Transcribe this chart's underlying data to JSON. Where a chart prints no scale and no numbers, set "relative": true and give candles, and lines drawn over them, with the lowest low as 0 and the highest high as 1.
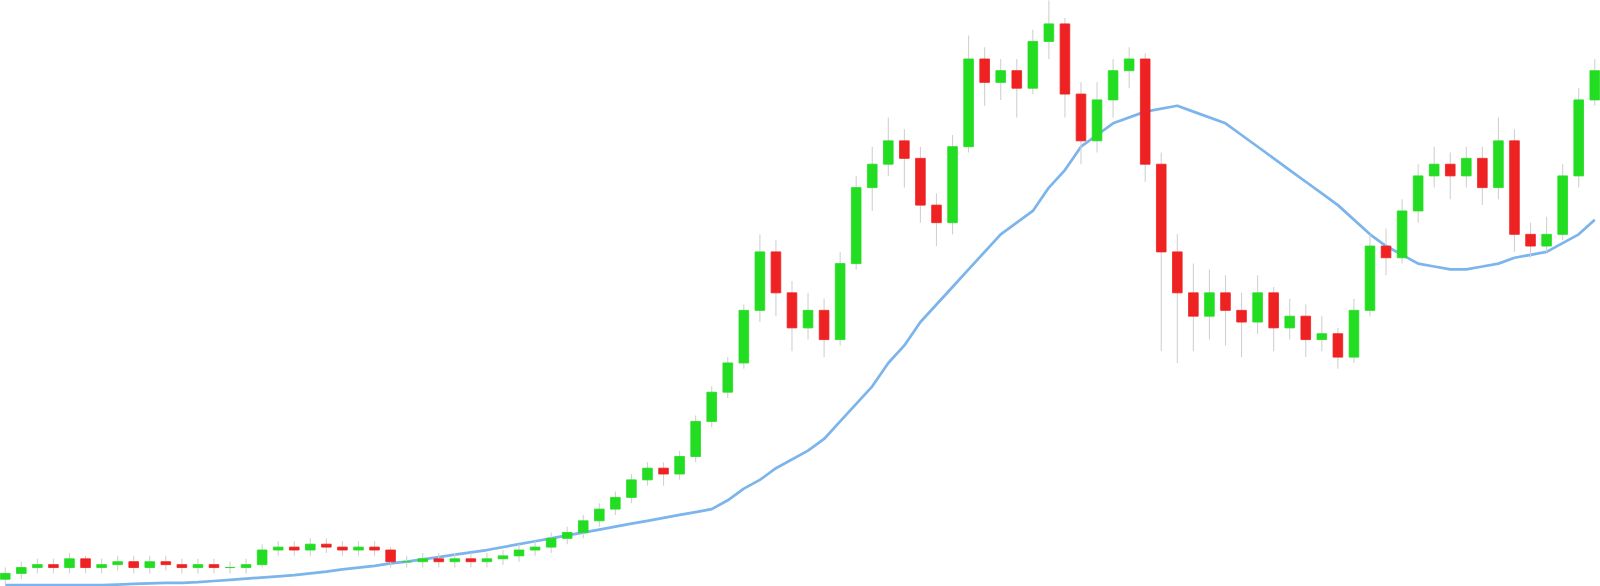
{
  "chart_data": {
    "type": "candlestick",
    "relative": true,
    "categories": [
      null,
      null,
      null,
      null,
      null,
      null,
      null,
      null,
      null,
      null,
      null,
      null,
      null,
      null,
      null,
      null,
      null,
      null,
      null,
      null,
      null,
      null,
      null,
      null,
      null,
      null,
      null,
      null,
      null,
      null,
      null,
      null,
      null,
      null,
      null,
      null,
      null,
      null,
      null,
      null,
      null,
      null,
      null,
      null,
      null,
      null,
      null,
      null,
      null,
      null,
      null,
      null,
      null,
      null,
      null,
      null,
      null,
      null,
      null,
      null,
      null,
      null,
      null,
      null,
      null,
      null,
      null,
      null,
      null,
      null,
      null,
      null,
      null,
      null,
      null,
      null,
      null,
      null,
      null,
      null,
      null,
      null,
      null,
      null,
      null,
      null,
      null,
      null,
      null,
      null,
      null,
      null,
      null,
      null,
      null,
      null,
      null,
      null,
      null,
      null
    ],
    "ohlc": [
      [
        0.01,
        0.03,
        0,
        0.02
      ],
      [
        0.02,
        0.04,
        0.01,
        0.03
      ],
      [
        0.03,
        0.045,
        0.02,
        0.035
      ],
      [
        0.035,
        0.045,
        0.02,
        0.03
      ],
      [
        0.03,
        0.055,
        0.02,
        0.045
      ],
      [
        0.045,
        0.05,
        0.02,
        0.03
      ],
      [
        0.03,
        0.045,
        0.02,
        0.035
      ],
      [
        0.035,
        0.05,
        0.025,
        0.04
      ],
      [
        0.04,
        0.05,
        0.02,
        0.03
      ],
      [
        0.03,
        0.05,
        0.02,
        0.04
      ],
      [
        0.04,
        0.05,
        0.025,
        0.035
      ],
      [
        0.035,
        0.045,
        0.02,
        0.03
      ],
      [
        0.03,
        0.045,
        0.02,
        0.035
      ],
      [
        0.035,
        0.045,
        0.02,
        0.03
      ],
      [
        0.03,
        0.04,
        0.02,
        0.03
      ],
      [
        0.03,
        0.045,
        0.02,
        0.035
      ],
      [
        0.035,
        0.07,
        0.03,
        0.06
      ],
      [
        0.06,
        0.075,
        0.05,
        0.065
      ],
      [
        0.065,
        0.075,
        0.05,
        0.06
      ],
      [
        0.06,
        0.08,
        0.05,
        0.07
      ],
      [
        0.07,
        0.08,
        0.055,
        0.065
      ],
      [
        0.065,
        0.075,
        0.05,
        0.06
      ],
      [
        0.06,
        0.075,
        0.05,
        0.065
      ],
      [
        0.065,
        0.075,
        0.05,
        0.06
      ],
      [
        0.06,
        0.065,
        0.03,
        0.04
      ],
      [
        0.04,
        0.05,
        0.03,
        0.04
      ],
      [
        0.04,
        0.055,
        0.03,
        0.045
      ],
      [
        0.045,
        0.055,
        0.03,
        0.04
      ],
      [
        0.04,
        0.055,
        0.03,
        0.045
      ],
      [
        0.045,
        0.055,
        0.03,
        0.04
      ],
      [
        0.04,
        0.055,
        0.03,
        0.045
      ],
      [
        0.045,
        0.06,
        0.035,
        0.05
      ],
      [
        0.05,
        0.07,
        0.04,
        0.06
      ],
      [
        0.06,
        0.075,
        0.05,
        0.065
      ],
      [
        0.065,
        0.09,
        0.055,
        0.08
      ],
      [
        0.08,
        0.1,
        0.07,
        0.09
      ],
      [
        0.09,
        0.12,
        0.08,
        0.11
      ],
      [
        0.11,
        0.14,
        0.1,
        0.13
      ],
      [
        0.13,
        0.16,
        0.12,
        0.15
      ],
      [
        0.15,
        0.19,
        0.14,
        0.18
      ],
      [
        0.18,
        0.21,
        0.17,
        0.2
      ],
      [
        0.2,
        0.21,
        0.17,
        0.19
      ],
      [
        0.19,
        0.23,
        0.18,
        0.22
      ],
      [
        0.22,
        0.29,
        0.21,
        0.28
      ],
      [
        0.28,
        0.34,
        0.27,
        0.33
      ],
      [
        0.33,
        0.39,
        0.32,
        0.38
      ],
      [
        0.38,
        0.48,
        0.37,
        0.47
      ],
      [
        0.47,
        0.6,
        0.45,
        0.57
      ],
      [
        0.57,
        0.59,
        0.46,
        0.5
      ],
      [
        0.5,
        0.52,
        0.4,
        0.44
      ],
      [
        0.44,
        0.5,
        0.42,
        0.47
      ],
      [
        0.47,
        0.49,
        0.39,
        0.42
      ],
      [
        0.42,
        0.57,
        0.41,
        0.55
      ],
      [
        0.55,
        0.7,
        0.54,
        0.68
      ],
      [
        0.68,
        0.75,
        0.64,
        0.72
      ],
      [
        0.72,
        0.8,
        0.7,
        0.76
      ],
      [
        0.76,
        0.78,
        0.68,
        0.73
      ],
      [
        0.73,
        0.75,
        0.62,
        0.65
      ],
      [
        0.65,
        0.67,
        0.58,
        0.62
      ],
      [
        0.62,
        0.77,
        0.6,
        0.75
      ],
      [
        0.75,
        0.94,
        0.74,
        0.9
      ],
      [
        0.9,
        0.92,
        0.82,
        0.86
      ],
      [
        0.86,
        0.9,
        0.83,
        0.88
      ],
      [
        0.88,
        0.9,
        0.8,
        0.85
      ],
      [
        0.85,
        0.95,
        0.84,
        0.93
      ],
      [
        0.93,
        1.0,
        0.9,
        0.96
      ],
      [
        0.96,
        0.97,
        0.8,
        0.84
      ],
      [
        0.84,
        0.86,
        0.72,
        0.76
      ],
      [
        0.76,
        0.86,
        0.74,
        0.83
      ],
      [
        0.83,
        0.9,
        0.8,
        0.88
      ],
      [
        0.88,
        0.92,
        0.85,
        0.9
      ],
      [
        0.9,
        0.91,
        0.69,
        0.72
      ],
      [
        0.72,
        0.74,
        0.4,
        0.57
      ],
      [
        0.57,
        0.6,
        0.38,
        0.5
      ],
      [
        0.5,
        0.55,
        0.4,
        0.46
      ],
      [
        0.46,
        0.54,
        0.42,
        0.5
      ],
      [
        0.5,
        0.53,
        0.41,
        0.47
      ],
      [
        0.47,
        0.5,
        0.39,
        0.45
      ],
      [
        0.45,
        0.53,
        0.43,
        0.5
      ],
      [
        0.5,
        0.51,
        0.4,
        0.44
      ],
      [
        0.44,
        0.49,
        0.42,
        0.46
      ],
      [
        0.46,
        0.48,
        0.39,
        0.42
      ],
      [
        0.42,
        0.46,
        0.4,
        0.43
      ],
      [
        0.43,
        0.44,
        0.37,
        0.39
      ],
      [
        0.39,
        0.49,
        0.38,
        0.47
      ],
      [
        0.47,
        0.6,
        0.46,
        0.58
      ],
      [
        0.58,
        0.61,
        0.53,
        0.56
      ],
      [
        0.56,
        0.66,
        0.55,
        0.64
      ],
      [
        0.64,
        0.72,
        0.62,
        0.7
      ],
      [
        0.7,
        0.75,
        0.68,
        0.72
      ],
      [
        0.72,
        0.74,
        0.66,
        0.7
      ],
      [
        0.7,
        0.75,
        0.68,
        0.73
      ],
      [
        0.73,
        0.75,
        0.65,
        0.68
      ],
      [
        0.68,
        0.8,
        0.66,
        0.76
      ],
      [
        0.76,
        0.78,
        0.57,
        0.6
      ],
      [
        0.6,
        0.62,
        0.56,
        0.58
      ],
      [
        0.58,
        0.63,
        0.57,
        0.6
      ],
      [
        0.6,
        0.72,
        0.59,
        0.7
      ],
      [
        0.7,
        0.85,
        0.68,
        0.83
      ],
      [
        0.83,
        0.9,
        0.82,
        0.88
      ]
    ],
    "colors": [
      "#22dd22",
      "#22dd22",
      "#22dd22",
      "#ee2222",
      "#22dd22",
      "#ee2222",
      "#22dd22",
      "#22dd22",
      "#ee2222",
      "#22dd22",
      "#ee2222",
      "#ee2222",
      "#22dd22",
      "#ee2222",
      "#22dd22",
      "#22dd22",
      "#22dd22",
      "#22dd22",
      "#ee2222",
      "#22dd22",
      "#ee2222",
      "#ee2222",
      "#22dd22",
      "#ee2222",
      "#ee2222",
      "#22dd22",
      "#22dd22",
      "#ee2222",
      "#22dd22",
      "#ee2222",
      "#22dd22",
      "#22dd22",
      "#22dd22",
      "#22dd22",
      "#22dd22",
      "#22dd22",
      "#22dd22",
      "#22dd22",
      "#22dd22",
      "#22dd22",
      "#22dd22",
      "#ee2222",
      "#22dd22",
      "#22dd22",
      "#22dd22",
      "#22dd22",
      "#22dd22",
      "#22dd22",
      "#ee2222",
      "#ee2222",
      "#22dd22",
      "#ee2222",
      "#22dd22",
      "#22dd22",
      "#22dd22",
      "#22dd22",
      "#ee2222",
      "#ee2222",
      "#ee2222",
      "#22dd22",
      "#22dd22",
      "#ee2222",
      "#22dd22",
      "#ee2222",
      "#22dd22",
      "#22dd22",
      "#ee2222",
      "#ee2222",
      "#22dd22",
      "#22dd22",
      "#22dd22",
      "#ee2222",
      "#ee2222",
      "#ee2222",
      "#ee2222",
      "#22dd22",
      "#ee2222",
      "#ee2222",
      "#22dd22",
      "#ee2222",
      "#22dd22",
      "#ee2222",
      "#22dd22",
      "#ee2222",
      "#22dd22",
      "#22dd22",
      "#ee2222",
      "#22dd22",
      "#22dd22",
      "#22dd22",
      "#ee2222",
      "#22dd22",
      "#ee2222",
      "#22dd22",
      "#ee2222",
      "#ee2222",
      "#22dd22",
      "#22dd22",
      "#22dd22",
      "#22dd22"
    ],
    "series": [
      {
        "type": "line",
        "color": "#7cb5ec",
        "values": [
          0,
          0,
          0,
          0,
          0,
          0,
          0,
          0.001,
          0.002,
          0.003,
          0.004,
          0.004,
          0.005,
          0.007,
          0.009,
          0.011,
          0.013,
          0.015,
          0.017,
          0.02,
          0.023,
          0.027,
          0.03,
          0.033,
          0.037,
          0.04,
          0.044,
          0.048,
          0.052,
          0.056,
          0.06,
          0.065,
          0.07,
          0.075,
          0.08,
          0.085,
          0.09,
          0.095,
          0.1,
          0.105,
          0.11,
          0.115,
          0.12,
          0.125,
          0.13,
          0.145,
          0.165,
          0.18,
          0.2,
          0.215,
          0.23,
          0.25,
          0.28,
          0.31,
          0.34,
          0.38,
          0.41,
          0.45,
          0.48,
          0.51,
          0.54,
          0.57,
          0.6,
          0.62,
          0.64,
          0.68,
          0.71,
          0.75,
          0.77,
          0.79,
          0.8,
          0.81,
          0.815,
          0.82,
          0.81,
          0.8,
          0.79,
          0.77,
          0.75,
          0.73,
          0.71,
          0.69,
          0.67,
          0.65,
          0.625,
          0.6,
          0.58,
          0.565,
          0.55,
          0.545,
          0.54,
          0.54,
          0.545,
          0.55,
          0.56,
          0.565,
          0.57,
          0.585,
          0.6,
          0.625
        ]
      }
    ]
  }
}
